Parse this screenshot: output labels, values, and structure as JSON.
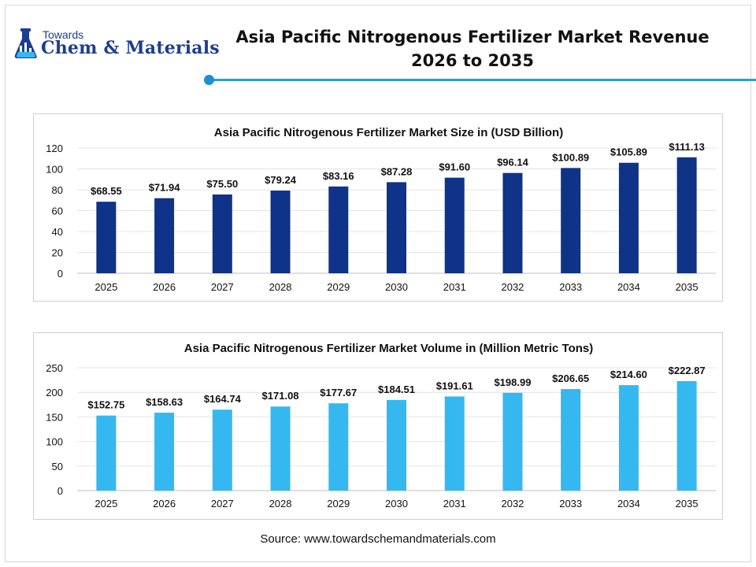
{
  "header": {
    "logo_top": "Towards",
    "logo_main": "Chem & Materials",
    "title_line1": "Asia Pacific Nitrogenous Fertilizer Market Revenue",
    "title_line2": "2026 to 2035"
  },
  "colors": {
    "accent_line": "#2a9fd6",
    "series_dark": "#0e3388",
    "series_light": "#35b8f0",
    "logo": "#1d3e8f"
  },
  "icons": {
    "logo": "flask-logo-icon"
  },
  "chart_data": [
    {
      "type": "bar",
      "title": "Asia Pacific Nitrogenous Fertilizer Market Size in (USD Billion)",
      "xlabel": "",
      "ylabel": "",
      "categories": [
        "2025",
        "2026",
        "2027",
        "2028",
        "2029",
        "2030",
        "2031",
        "2032",
        "2033",
        "2034",
        "2035"
      ],
      "values": [
        68.55,
        71.94,
        75.5,
        79.24,
        83.16,
        87.28,
        91.6,
        96.14,
        100.89,
        105.89,
        111.13
      ],
      "labels": [
        "$68.55",
        "$71.94",
        "$75.50",
        "$79.24",
        "$83.16",
        "$87.28",
        "$91.60",
        "$96.14",
        "$100.89",
        "$105.89",
        "$111.13"
      ],
      "ylim": [
        0,
        120
      ],
      "yticks": [
        0,
        20,
        40,
        60,
        80,
        100,
        120
      ],
      "grid": true,
      "color": "#0e3388"
    },
    {
      "type": "bar",
      "title": "Asia Pacific Nitrogenous Fertilizer Market Volume in (Million Metric Tons)",
      "xlabel": "",
      "ylabel": "",
      "categories": [
        "2025",
        "2026",
        "2027",
        "2028",
        "2029",
        "2030",
        "2031",
        "2032",
        "2033",
        "2034",
        "2035"
      ],
      "values": [
        152.75,
        158.63,
        164.74,
        171.08,
        177.67,
        184.51,
        191.61,
        198.99,
        206.65,
        214.6,
        222.87
      ],
      "labels": [
        "$152.75",
        "$158.63",
        "$164.74",
        "$171.08",
        "$177.67",
        "$184.51",
        "$191.61",
        "$198.99",
        "$206.65",
        "$214.60",
        "$222.87"
      ],
      "ylim": [
        0,
        250
      ],
      "yticks": [
        0,
        50,
        100,
        150,
        200,
        250
      ],
      "grid": true,
      "color": "#35b8f0"
    }
  ],
  "footer": {
    "source": "Source: www.towardschemandmaterials.com"
  }
}
